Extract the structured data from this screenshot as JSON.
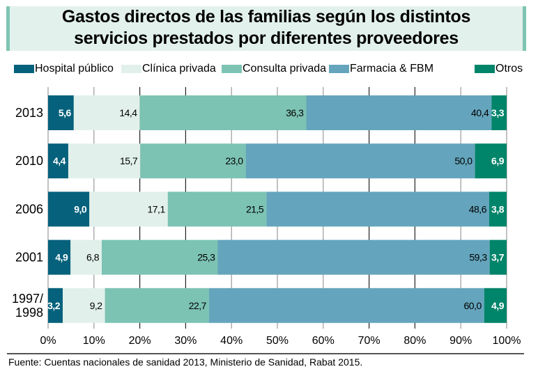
{
  "title_lines": [
    "Gastos directos de las familias según los distintos",
    "servicios prestados por diferentes proveedores"
  ],
  "source": "Fuente: Cuentas nacionales de sanidad 2013, Ministerio de Sanidad, Rabat 2015.",
  "chart_data": {
    "type": "bar",
    "orientation": "horizontal",
    "stacked": "percent",
    "title": "Gastos directos de las familias según los distintos servicios prestados por diferentes proveedores",
    "xlabel": "",
    "ylabel": "",
    "xlim": [
      0,
      100
    ],
    "x_ticks": [
      "0%",
      "10%",
      "20%",
      "30%",
      "40%",
      "50%",
      "60%",
      "70%",
      "80%",
      "90%",
      "100%"
    ],
    "grid": "vertical",
    "legend_position": "top",
    "categories": [
      "2013",
      "2010",
      "2006",
      "2001",
      "1997/1998"
    ],
    "category_label_lines": [
      [
        "2013"
      ],
      [
        "2010"
      ],
      [
        "2006"
      ],
      [
        "2001"
      ],
      [
        "1997/",
        "1998"
      ]
    ],
    "series": [
      {
        "name": "Hospital público",
        "color": "#06617c",
        "label_color": "#ffffff",
        "values": [
          5.6,
          4.4,
          9.0,
          4.9,
          3.2
        ],
        "labels": [
          "5,6",
          "4,4",
          "9,0",
          "4,9",
          "3,2"
        ]
      },
      {
        "name": "Clínica privada",
        "color": "#e1f0eb",
        "label_color": "#000000",
        "values": [
          14.4,
          15.7,
          17.1,
          6.8,
          9.2
        ],
        "labels": [
          "14,4",
          "15,7",
          "17,1",
          "6,8",
          "9,2"
        ]
      },
      {
        "name": "Consulta privada",
        "color": "#7cc3b3",
        "label_color": "#000000",
        "values": [
          36.3,
          23.0,
          21.5,
          25.3,
          22.7
        ],
        "labels": [
          "36,3",
          "23,0",
          "21,5",
          "25,3",
          "22,7"
        ]
      },
      {
        "name": "Farmacia & FBM",
        "color": "#64a5bd",
        "label_color": "#000000",
        "values": [
          40.4,
          50.0,
          48.6,
          59.3,
          60.0
        ],
        "labels": [
          "40,4",
          "50,0",
          "48,6",
          "59,3",
          "60,0"
        ]
      },
      {
        "name": "Otros",
        "color": "#00846a",
        "label_color": "#ffffff",
        "values": [
          3.3,
          6.9,
          3.8,
          3.7,
          4.9
        ],
        "labels": [
          "3,3",
          "6,9",
          "3,8",
          "3,7",
          "4,9"
        ]
      }
    ]
  }
}
